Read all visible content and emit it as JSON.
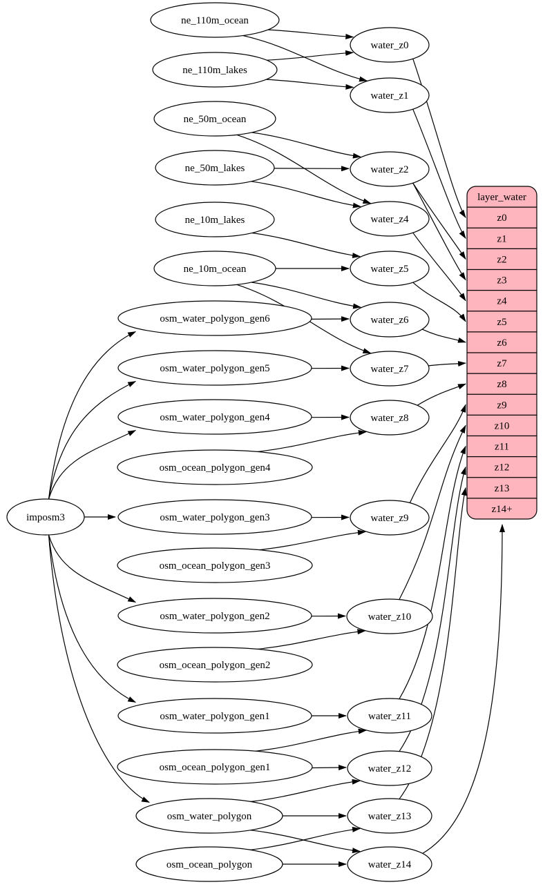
{
  "diagram": {
    "colors": {
      "background": "#ffffff",
      "edge": "#000000",
      "node_fill": "#ffffff",
      "node_stroke": "#000000",
      "record_fill": "#ffb5bd",
      "record_stroke": "#000000",
      "text": "#000000"
    },
    "nodes": [
      {
        "id": "ne_110m_ocean",
        "label": "ne_110m_ocean",
        "kind": "source"
      },
      {
        "id": "ne_110m_lakes",
        "label": "ne_110m_lakes",
        "kind": "source"
      },
      {
        "id": "ne_50m_ocean",
        "label": "ne_50m_ocean",
        "kind": "source"
      },
      {
        "id": "ne_50m_lakes",
        "label": "ne_50m_lakes",
        "kind": "source"
      },
      {
        "id": "ne_10m_lakes",
        "label": "ne_10m_lakes",
        "kind": "source"
      },
      {
        "id": "ne_10m_ocean",
        "label": "ne_10m_ocean",
        "kind": "source"
      },
      {
        "id": "osm_water_polygon_gen6",
        "label": "osm_water_polygon_gen6",
        "kind": "source"
      },
      {
        "id": "osm_water_polygon_gen5",
        "label": "osm_water_polygon_gen5",
        "kind": "source"
      },
      {
        "id": "osm_water_polygon_gen4",
        "label": "osm_water_polygon_gen4",
        "kind": "source"
      },
      {
        "id": "osm_ocean_polygon_gen4",
        "label": "osm_ocean_polygon_gen4",
        "kind": "source"
      },
      {
        "id": "osm_water_polygon_gen3",
        "label": "osm_water_polygon_gen3",
        "kind": "source"
      },
      {
        "id": "osm_ocean_polygon_gen3",
        "label": "osm_ocean_polygon_gen3",
        "kind": "source"
      },
      {
        "id": "osm_water_polygon_gen2",
        "label": "osm_water_polygon_gen2",
        "kind": "source"
      },
      {
        "id": "osm_ocean_polygon_gen2",
        "label": "osm_ocean_polygon_gen2",
        "kind": "source"
      },
      {
        "id": "osm_water_polygon_gen1",
        "label": "osm_water_polygon_gen1",
        "kind": "source"
      },
      {
        "id": "osm_ocean_polygon_gen1",
        "label": "osm_ocean_polygon_gen1",
        "kind": "source"
      },
      {
        "id": "osm_water_polygon",
        "label": "osm_water_polygon",
        "kind": "source"
      },
      {
        "id": "osm_ocean_polygon",
        "label": "osm_ocean_polygon",
        "kind": "source"
      },
      {
        "id": "imposm3",
        "label": "imposm3",
        "kind": "importer"
      },
      {
        "id": "water_z0",
        "label": "water_z0",
        "kind": "transform"
      },
      {
        "id": "water_z1",
        "label": "water_z1",
        "kind": "transform"
      },
      {
        "id": "water_z2",
        "label": "water_z2",
        "kind": "transform"
      },
      {
        "id": "water_z4",
        "label": "water_z4",
        "kind": "transform"
      },
      {
        "id": "water_z5",
        "label": "water_z5",
        "kind": "transform"
      },
      {
        "id": "water_z6",
        "label": "water_z6",
        "kind": "transform"
      },
      {
        "id": "water_z7",
        "label": "water_z7",
        "kind": "transform"
      },
      {
        "id": "water_z8",
        "label": "water_z8",
        "kind": "transform"
      },
      {
        "id": "water_z9",
        "label": "water_z9",
        "kind": "transform"
      },
      {
        "id": "water_z10",
        "label": "water_z10",
        "kind": "transform"
      },
      {
        "id": "water_z11",
        "label": "water_z11",
        "kind": "transform"
      },
      {
        "id": "water_z12",
        "label": "water_z12",
        "kind": "transform"
      },
      {
        "id": "water_z13",
        "label": "water_z13",
        "kind": "transform"
      },
      {
        "id": "water_z14",
        "label": "water_z14",
        "kind": "transform"
      }
    ],
    "record": {
      "id": "layer_water",
      "title": "layer_water",
      "rows": [
        "z0",
        "z1",
        "z2",
        "z3",
        "z4",
        "z5",
        "z6",
        "z7",
        "z8",
        "z9",
        "z10",
        "z11",
        "z12",
        "z13",
        "z14+"
      ]
    },
    "edges": [
      [
        "imposm3",
        "osm_water_polygon_gen6"
      ],
      [
        "imposm3",
        "osm_water_polygon_gen5"
      ],
      [
        "imposm3",
        "osm_water_polygon_gen4"
      ],
      [
        "imposm3",
        "osm_water_polygon_gen3"
      ],
      [
        "imposm3",
        "osm_water_polygon_gen2"
      ],
      [
        "imposm3",
        "osm_water_polygon_gen1"
      ],
      [
        "imposm3",
        "osm_water_polygon"
      ],
      [
        "ne_110m_ocean",
        "water_z0"
      ],
      [
        "ne_110m_ocean",
        "water_z1"
      ],
      [
        "ne_110m_lakes",
        "water_z0"
      ],
      [
        "ne_110m_lakes",
        "water_z1"
      ],
      [
        "ne_50m_ocean",
        "water_z2"
      ],
      [
        "ne_50m_ocean",
        "water_z4"
      ],
      [
        "ne_50m_lakes",
        "water_z2"
      ],
      [
        "ne_50m_lakes",
        "water_z4"
      ],
      [
        "ne_10m_lakes",
        "water_z5"
      ],
      [
        "ne_10m_ocean",
        "water_z5"
      ],
      [
        "ne_10m_ocean",
        "water_z6"
      ],
      [
        "ne_10m_ocean",
        "water_z7"
      ],
      [
        "osm_water_polygon_gen6",
        "water_z6"
      ],
      [
        "osm_water_polygon_gen5",
        "water_z7"
      ],
      [
        "osm_water_polygon_gen4",
        "water_z8"
      ],
      [
        "osm_ocean_polygon_gen4",
        "water_z8"
      ],
      [
        "osm_water_polygon_gen3",
        "water_z9"
      ],
      [
        "osm_ocean_polygon_gen3",
        "water_z9"
      ],
      [
        "osm_water_polygon_gen2",
        "water_z10"
      ],
      [
        "osm_ocean_polygon_gen2",
        "water_z10"
      ],
      [
        "osm_water_polygon_gen1",
        "water_z11"
      ],
      [
        "osm_ocean_polygon_gen1",
        "water_z11"
      ],
      [
        "osm_ocean_polygon_gen1",
        "water_z12"
      ],
      [
        "osm_water_polygon",
        "water_z12"
      ],
      [
        "osm_water_polygon",
        "water_z13"
      ],
      [
        "osm_water_polygon",
        "water_z14"
      ],
      [
        "osm_ocean_polygon",
        "water_z13"
      ],
      [
        "osm_ocean_polygon",
        "water_z14"
      ],
      [
        "water_z0",
        "layer_water:z0"
      ],
      [
        "water_z1",
        "layer_water:z1"
      ],
      [
        "water_z2",
        "layer_water:z2"
      ],
      [
        "water_z2",
        "layer_water:z3"
      ],
      [
        "water_z4",
        "layer_water:z4"
      ],
      [
        "water_z5",
        "layer_water:z5"
      ],
      [
        "water_z6",
        "layer_water:z6"
      ],
      [
        "water_z7",
        "layer_water:z7"
      ],
      [
        "water_z8",
        "layer_water:z8"
      ],
      [
        "water_z9",
        "layer_water:z9"
      ],
      [
        "water_z10",
        "layer_water:z10"
      ],
      [
        "water_z11",
        "layer_water:z11"
      ],
      [
        "water_z12",
        "layer_water:z12"
      ],
      [
        "water_z13",
        "layer_water:z13"
      ],
      [
        "water_z14",
        "layer_water:z14+"
      ]
    ]
  }
}
